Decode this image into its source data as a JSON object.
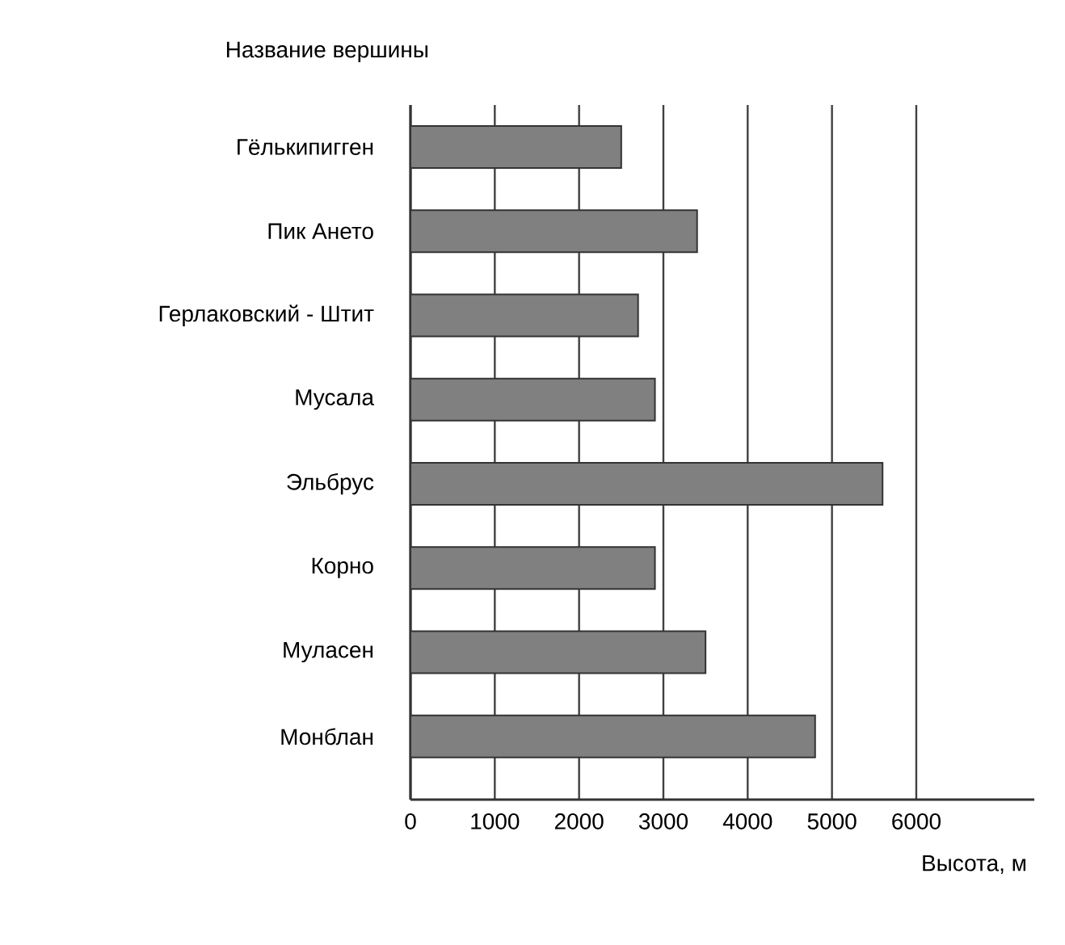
{
  "chart_data": {
    "type": "bar",
    "orientation": "horizontal",
    "ylabel": "Название вершины",
    "xlabel": "Высота, м",
    "categories": [
      "Гёлькипигген",
      "Пик Ането",
      "Герлаковский - Штит",
      "Мусала",
      "Эльбрус",
      "Корно",
      "Муласен",
      "Монблан"
    ],
    "values": [
      2500,
      3400,
      2700,
      2900,
      5600,
      2900,
      3500,
      4800
    ],
    "color": "#808080",
    "xlim": [
      0,
      7400
    ],
    "xticks": [
      0,
      1000,
      2000,
      3000,
      4000,
      5000,
      6000
    ],
    "grid": "x"
  }
}
